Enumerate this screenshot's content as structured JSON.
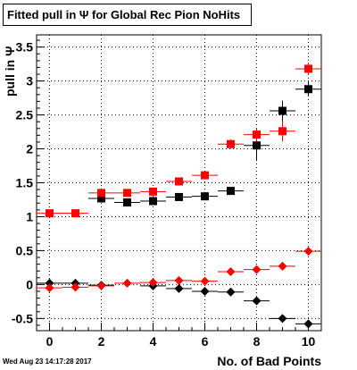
{
  "title": "Fitted pull in Ψ  for Global Rec Pion NoHits",
  "timestamp": "Wed Aug 23 14:17:28 2017",
  "chart_data": {
    "type": "scatter",
    "title": "Fitted pull in Ψ  for Global Rec Pion NoHits",
    "xlabel": "No. of Bad Points",
    "ylabel": "pull in Ψ",
    "xlim": [
      -0.5,
      10.5
    ],
    "ylim": [
      -0.68,
      3.68
    ],
    "grid": true,
    "x_ticks": [
      "0",
      "2",
      "4",
      "6",
      "8",
      "10"
    ],
    "y_ticks": [
      "-0.5",
      "0",
      "0.5",
      "1",
      "1.5",
      "2",
      "2.5",
      "3",
      "3.5"
    ],
    "series": [
      {
        "marker": "square",
        "color": "#000000",
        "points": [
          {
            "x": 2,
            "y": 1.27,
            "xerr": 0.5,
            "yerr": 0.06
          },
          {
            "x": 3,
            "y": 1.21,
            "xerr": 0.5,
            "yerr": 0.05
          },
          {
            "x": 4,
            "y": 1.23,
            "xerr": 0.5,
            "yerr": 0.05
          },
          {
            "x": 5,
            "y": 1.29,
            "xerr": 0.5,
            "yerr": 0.04
          },
          {
            "x": 6,
            "y": 1.3,
            "xerr": 0.5,
            "yerr": 0.05
          },
          {
            "x": 7,
            "y": 1.38,
            "xerr": 0.5,
            "yerr": 0.05
          },
          {
            "x": 8,
            "y": 2.05,
            "xerr": 0.5,
            "yerr": 0.22
          },
          {
            "x": 9,
            "y": 2.56,
            "xerr": 0.5,
            "yerr": 0.15
          },
          {
            "x": 10,
            "y": 2.88,
            "xerr": 0.5,
            "yerr": 0.1
          }
        ]
      },
      {
        "marker": "square",
        "color": "#ff0000",
        "points": [
          {
            "x": 0,
            "y": 1.05,
            "xerr": 0.5,
            "yerr": 0.03
          },
          {
            "x": 1,
            "y": 1.05,
            "xerr": 0.5,
            "yerr": 0.03
          },
          {
            "x": 2,
            "y": 1.35,
            "xerr": 0.5,
            "yerr": 0.04
          },
          {
            "x": 3,
            "y": 1.35,
            "xerr": 0.5,
            "yerr": 0.04
          },
          {
            "x": 4,
            "y": 1.37,
            "xerr": 0.5,
            "yerr": 0.04
          },
          {
            "x": 5,
            "y": 1.52,
            "xerr": 0.5,
            "yerr": 0.04
          },
          {
            "x": 6,
            "y": 1.61,
            "xerr": 0.5,
            "yerr": 0.05
          },
          {
            "x": 7,
            "y": 2.07,
            "xerr": 0.5,
            "yerr": 0.07
          },
          {
            "x": 8,
            "y": 2.21,
            "xerr": 0.5,
            "yerr": 0.1
          },
          {
            "x": 9,
            "y": 2.26,
            "xerr": 0.5,
            "yerr": 0.15
          },
          {
            "x": 10,
            "y": 3.18,
            "xerr": 0.5,
            "yerr": 0.09
          }
        ]
      },
      {
        "marker": "diamond",
        "color": "#000000",
        "points": [
          {
            "x": 0,
            "y": 0.02,
            "xerr": 0.5,
            "yerr": 0.01
          },
          {
            "x": 1,
            "y": 0.02,
            "xerr": 0.5,
            "yerr": 0.01
          },
          {
            "x": 2,
            "y": -0.01,
            "xerr": 0.5,
            "yerr": 0.01
          },
          {
            "x": 4,
            "y": -0.02,
            "xerr": 0.5,
            "yerr": 0.01
          },
          {
            "x": 5,
            "y": -0.06,
            "xerr": 0.5,
            "yerr": 0.01
          },
          {
            "x": 6,
            "y": -0.1,
            "xerr": 0.5,
            "yerr": 0.01
          },
          {
            "x": 7,
            "y": -0.11,
            "xerr": 0.5,
            "yerr": 0.02
          },
          {
            "x": 8,
            "y": -0.24,
            "xerr": 0.5,
            "yerr": 0.04
          },
          {
            "x": 9,
            "y": -0.5,
            "xerr": 0.5,
            "yerr": 0.05
          },
          {
            "x": 10,
            "y": -0.58,
            "xerr": 0.5,
            "yerr": 0.04
          }
        ]
      },
      {
        "marker": "diamond",
        "color": "#ff0000",
        "points": [
          {
            "x": 0,
            "y": -0.05,
            "xerr": 0.5,
            "yerr": 0.01
          },
          {
            "x": 1,
            "y": -0.04,
            "xerr": 0.5,
            "yerr": 0.01
          },
          {
            "x": 2,
            "y": -0.02,
            "xerr": 0.5,
            "yerr": 0.01
          },
          {
            "x": 3,
            "y": 0.02,
            "xerr": 0.5,
            "yerr": 0.01
          },
          {
            "x": 4,
            "y": 0.03,
            "xerr": 0.5,
            "yerr": 0.01
          },
          {
            "x": 5,
            "y": 0.06,
            "xerr": 0.5,
            "yerr": 0.01
          },
          {
            "x": 6,
            "y": 0.05,
            "xerr": 0.5,
            "yerr": 0.01
          },
          {
            "x": 7,
            "y": 0.19,
            "xerr": 0.5,
            "yerr": 0.02
          },
          {
            "x": 8,
            "y": 0.22,
            "xerr": 0.5,
            "yerr": 0.03
          },
          {
            "x": 9,
            "y": 0.27,
            "xerr": 0.5,
            "yerr": 0.04
          },
          {
            "x": 10,
            "y": 0.49,
            "xerr": 0.5,
            "yerr": 0.02
          }
        ]
      }
    ]
  }
}
